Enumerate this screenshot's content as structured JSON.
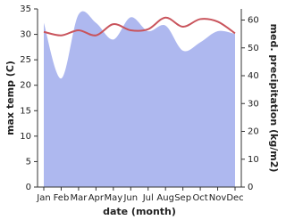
{
  "chart_data": {
    "type": "line",
    "xlabel": "date (month)",
    "ylabel": "max temp (C)",
    "y2label": "med. precipitation (kg/m2)",
    "categories": [
      "Jan",
      "Feb",
      "Mar",
      "Apr",
      "May",
      "Jun",
      "Jul",
      "Aug",
      "Sep",
      "Oct",
      "Nov",
      "Dec"
    ],
    "series": [
      {
        "name": "med. precipitation",
        "kind": "area",
        "axis": "y2",
        "color": "#aeb8ef",
        "values": [
          59,
          39,
          62,
          59,
          53,
          61,
          56,
          58,
          49,
          52,
          56,
          55
        ]
      },
      {
        "name": "max temp",
        "kind": "line",
        "color": "#c9545c",
        "values": [
          30.5,
          29.8,
          30.8,
          29.8,
          32,
          30.8,
          31,
          33.3,
          31.5,
          33,
          32.5,
          30.2
        ]
      }
    ],
    "ylim": [
      0,
      35
    ],
    "yticks": [
      0,
      5,
      10,
      15,
      20,
      25,
      30,
      35
    ],
    "y2lim": [
      0,
      64
    ],
    "y2ticks": [
      0,
      10,
      20,
      30,
      40,
      50,
      60
    ]
  }
}
